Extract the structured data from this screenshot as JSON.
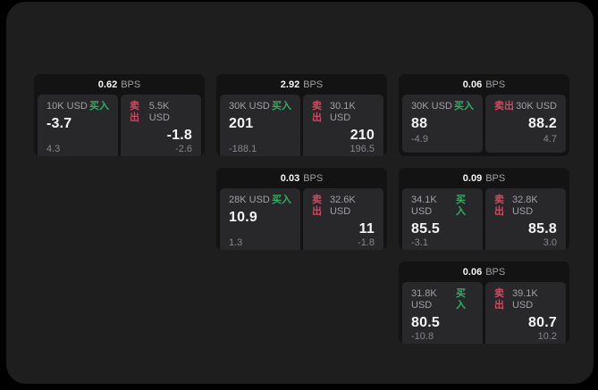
{
  "theme": {
    "page_bg": "#000000",
    "window_bg": "#1e1e1f",
    "card_bg": "#131314",
    "panel_bg": "#28282a",
    "text_primary": "#f5f5f7",
    "text_secondary": "#a0a0a5",
    "buy_color": "#32ae63",
    "sell_color": "#cc4b61"
  },
  "labels": {
    "bps": "BPS",
    "buy": "买入",
    "sell": "卖出"
  },
  "cards": [
    {
      "bps": "0.62",
      "grid": {
        "row": 1,
        "col": 1
      },
      "buy": {
        "amount": "10K USD",
        "value": "-3.7",
        "delta": "4.3"
      },
      "sell": {
        "amount": "5.5K USD",
        "value": "-1.8",
        "delta": "-2.6"
      }
    },
    {
      "bps": "2.92",
      "grid": {
        "row": 1,
        "col": 2
      },
      "buy": {
        "amount": "30K USD",
        "value": "201",
        "delta": "-188.1"
      },
      "sell": {
        "amount": "30.1K USD",
        "value": "210",
        "delta": "196.5"
      }
    },
    {
      "bps": "0.06",
      "grid": {
        "row": 1,
        "col": 3
      },
      "buy": {
        "amount": "30K USD",
        "value": "88",
        "delta": "-4.9"
      },
      "sell": {
        "amount": "30K USD",
        "value": "88.2",
        "delta": "4.7"
      }
    },
    {
      "bps": "0.03",
      "grid": {
        "row": 2,
        "col": 2
      },
      "buy": {
        "amount": "28K USD",
        "value": "10.9",
        "delta": "1.3"
      },
      "sell": {
        "amount": "32.6K USD",
        "value": "11",
        "delta": "-1.8"
      }
    },
    {
      "bps": "0.09",
      "grid": {
        "row": 2,
        "col": 3
      },
      "buy": {
        "amount": "34.1K USD",
        "value": "85.5",
        "delta": "-3.1"
      },
      "sell": {
        "amount": "32.8K USD",
        "value": "85.8",
        "delta": "3.0"
      }
    },
    {
      "bps": "0.06",
      "grid": {
        "row": 3,
        "col": 3
      },
      "buy": {
        "amount": "31.8K USD",
        "value": "80.5",
        "delta": "-10.8"
      },
      "sell": {
        "amount": "39.1K USD",
        "value": "80.7",
        "delta": "10.2"
      }
    }
  ]
}
